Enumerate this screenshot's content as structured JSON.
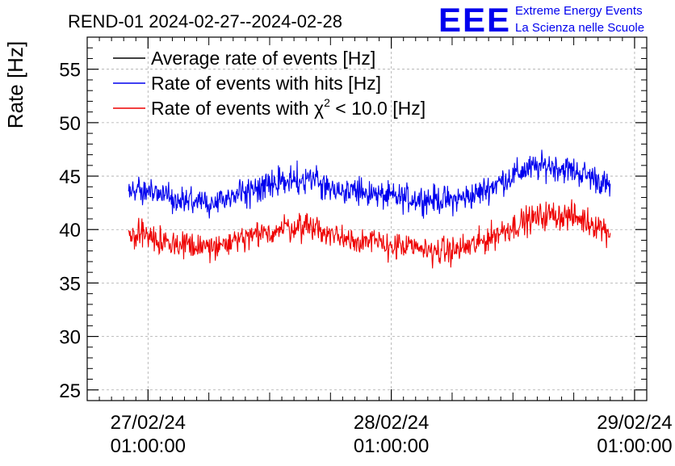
{
  "chart_data": {
    "type": "line",
    "title": "REND-01 2024-02-27--2024-02-28",
    "xlabel": "",
    "ylabel": "Rate [Hz]",
    "ylim": [
      24,
      58
    ],
    "xlim_days": [
      -0.25,
      2.05
    ],
    "yticks": [
      25,
      30,
      35,
      40,
      45,
      50,
      55
    ],
    "grid": true,
    "legend_position": "top-left",
    "x_ticks": [
      {
        "value": 0,
        "date": "27/02/24",
        "time": "01:00:00"
      },
      {
        "value": 1,
        "date": "28/02/24",
        "time": "01:00:00"
      },
      {
        "value": 2,
        "date": "29/02/24",
        "time": "01:00:00"
      }
    ],
    "x_unit": "days since 27/02/24 01:00:00",
    "series": [
      {
        "name": "Average rate of events [Hz]",
        "color": "#000000",
        "x": [],
        "values": []
      },
      {
        "name": "Rate of events with hits [Hz]",
        "color": "#0000ee",
        "noise": 1.0,
        "x": [
          -0.08,
          0.0,
          0.1,
          0.2,
          0.28,
          0.35,
          0.45,
          0.55,
          0.65,
          0.7,
          0.7,
          0.8,
          0.9,
          1.0,
          1.1,
          1.2,
          1.25,
          1.35,
          1.45,
          1.55,
          1.65,
          1.75,
          1.85,
          1.9
        ],
        "values": [
          43.8,
          43.6,
          43.0,
          42.8,
          42.6,
          43.2,
          43.8,
          44.5,
          44.9,
          44.8,
          44.2,
          43.8,
          43.4,
          43.0,
          42.9,
          42.8,
          42.7,
          43.3,
          44.5,
          45.6,
          46.0,
          45.5,
          44.7,
          43.8
        ]
      },
      {
        "name": "Rate of events with χ² < 10.0 [Hz]",
        "label_main": "Rate of events with χ",
        "label_sup": "2",
        "label_end": " < 10.0 [Hz]",
        "color": "#ee0000",
        "noise": 1.0,
        "x": [
          -0.08,
          0.0,
          0.1,
          0.2,
          0.28,
          0.35,
          0.45,
          0.55,
          0.65,
          0.7,
          0.7,
          0.8,
          0.9,
          1.0,
          1.1,
          1.2,
          1.25,
          1.35,
          1.45,
          1.55,
          1.65,
          1.75,
          1.85,
          1.9
        ],
        "values": [
          39.7,
          39.3,
          38.7,
          38.4,
          38.3,
          38.8,
          39.4,
          40.1,
          40.4,
          40.3,
          39.8,
          39.3,
          38.9,
          38.5,
          38.2,
          38.0,
          38.0,
          38.6,
          39.8,
          40.8,
          41.4,
          41.2,
          40.4,
          39.7
        ]
      }
    ]
  },
  "logo": {
    "letters": "EEE",
    "line1": "Extreme Energy Events",
    "line2": "La Scienza nelle Scuole",
    "color": "#0000ee"
  }
}
